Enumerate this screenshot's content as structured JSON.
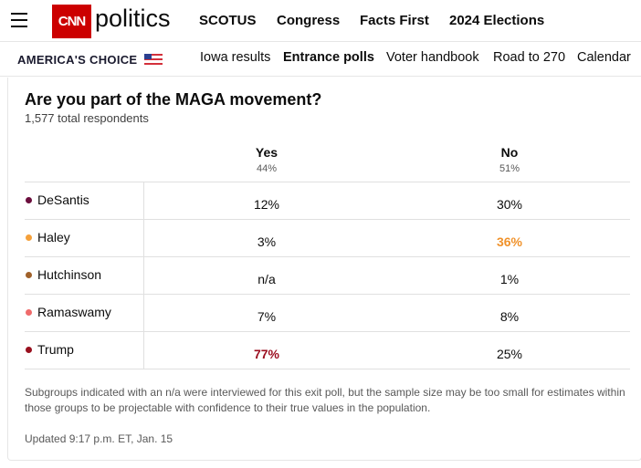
{
  "nav": {
    "brand": "politics",
    "links": [
      "SCOTUS",
      "Congress",
      "Facts First",
      "2024 Elections"
    ]
  },
  "subnav": {
    "label": "AMERICA'S CHOICE",
    "links": [
      "Iowa results",
      "Entrance polls",
      "Voter handbook",
      "Road to 270",
      "Calendar"
    ]
  },
  "poll": {
    "title": "Are you part of the MAGA movement?",
    "subtitle": "1,577 total respondents",
    "columns": [
      {
        "name": "Yes",
        "share": "44%"
      },
      {
        "name": "No",
        "share": "51%"
      }
    ],
    "rows": [
      {
        "name": "DeSantis",
        "values": [
          "12%",
          "30%"
        ]
      },
      {
        "name": "Haley",
        "values": [
          "3%",
          "36%"
        ]
      },
      {
        "name": "Hutchinson",
        "values": [
          "n/a",
          "1%"
        ]
      },
      {
        "name": "Ramaswamy",
        "values": [
          "7%",
          "8%"
        ]
      },
      {
        "name": "Trump",
        "values": [
          "77%",
          "25%"
        ]
      }
    ],
    "note": "Subgroups indicated with an n/a were interviewed for this exit poll, but the sample size may be too small for estimates within those groups to be projectable with confidence to their true values in the population.",
    "updated": "Updated 9:17 p.m. ET, Jan. 15"
  }
}
